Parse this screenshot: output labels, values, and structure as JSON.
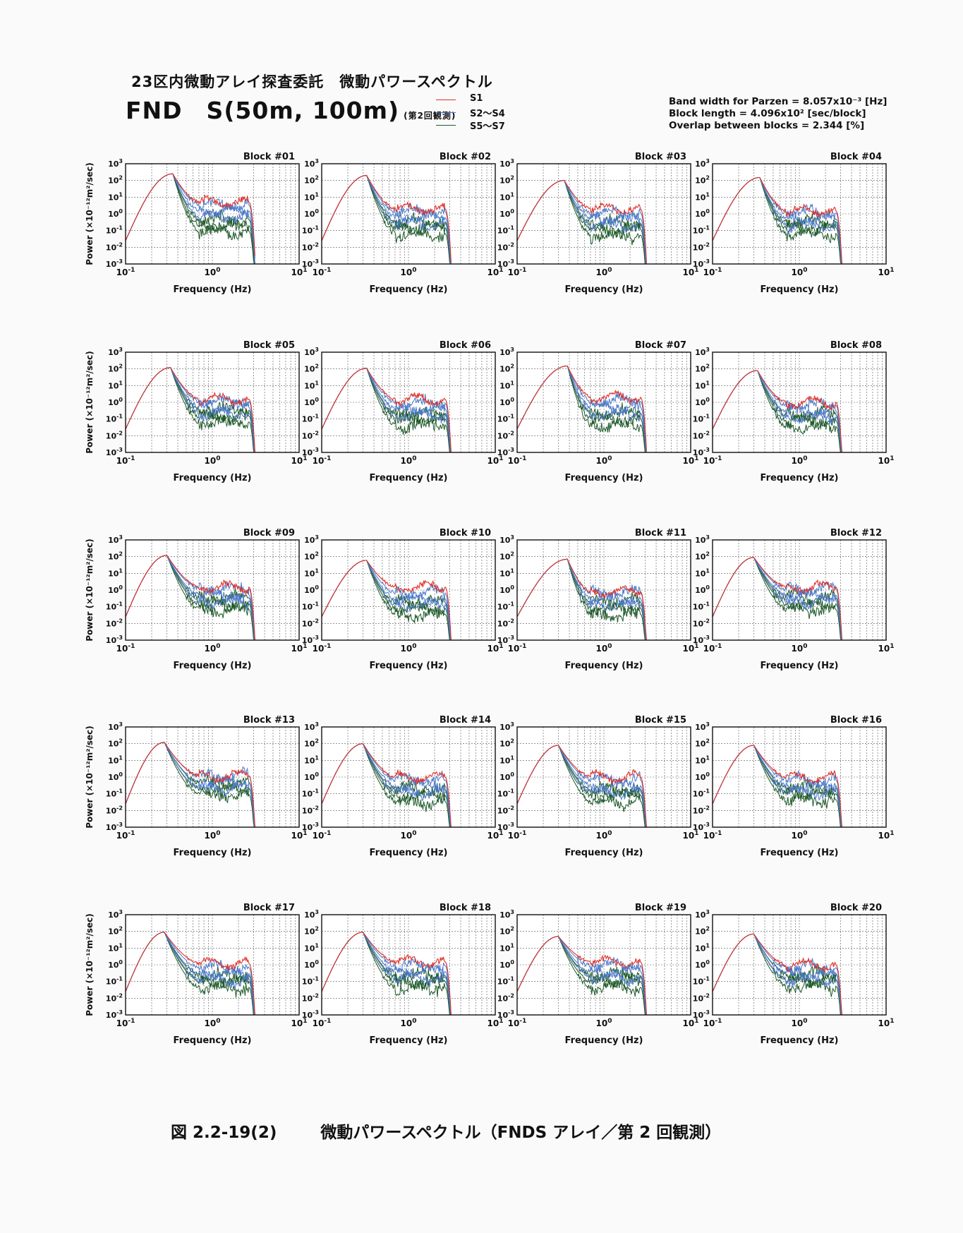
{
  "header": {
    "title": "23区内微動アレイ探査委託　微動パワースペクトル",
    "site": "FND　S(50m, 100m)",
    "site_note": "(第2回観測)"
  },
  "legend": [
    {
      "label": "S1",
      "color": "#e0302a"
    },
    {
      "label": "S2～S4",
      "color": "#4a78c8"
    },
    {
      "label": "S5～S7",
      "color": "#1e5a2a"
    }
  ],
  "params": {
    "bandwidth": "Band width for Parzen = 8.057x10⁻³ [Hz]",
    "block_length": "Block length = 4.096x10² [sec/block]",
    "overlap": "Overlap between blocks = 2.344 [%]"
  },
  "chart_data": {
    "type": "line",
    "layout": "grid 5 rows x 4 columns",
    "xlabel": "Frequency (Hz)",
    "ylabel": "Power (×10⁻¹²m²/sec)",
    "xscale": "log",
    "yscale": "log",
    "xlim": [
      0.1,
      10
    ],
    "ylim": [
      0.001,
      1000
    ],
    "x_tick_labels": [
      "10⁻¹",
      "10⁰",
      "10¹"
    ],
    "y_tick_labels": [
      "10³",
      "10²",
      "10¹",
      "10⁰",
      "10⁻¹",
      "10⁻²",
      "10⁻³"
    ],
    "grid": true,
    "series": [
      {
        "name": "S1",
        "color": "#e0302a"
      },
      {
        "name": "S2～S4",
        "color": "#4a78c8"
      },
      {
        "name": "S5～S7",
        "color": "#1e5a2a"
      }
    ],
    "panels": [
      {
        "title": "Block #01",
        "peak_hz": 0.35,
        "peak_power": 250,
        "S1_plateau": 5,
        "S2S4_plateau": 1.5,
        "S5S7_plateau": 0.2
      },
      {
        "title": "Block #02",
        "peak_hz": 0.33,
        "peak_power": 200,
        "S1_plateau": 2,
        "S2S4_plateau": 0.6,
        "S5S7_plateau": 0.15
      },
      {
        "title": "Block #03",
        "peak_hz": 0.35,
        "peak_power": 100,
        "S1_plateau": 2,
        "S2S4_plateau": 0.5,
        "S5S7_plateau": 0.12
      },
      {
        "title": "Block #04",
        "peak_hz": 0.35,
        "peak_power": 150,
        "S1_plateau": 1.5,
        "S2S4_plateau": 0.5,
        "S5S7_plateau": 0.15
      },
      {
        "title": "Block #05",
        "peak_hz": 0.33,
        "peak_power": 120,
        "S1_plateau": 1.5,
        "S2S4_plateau": 0.5,
        "S5S7_plateau": 0.15
      },
      {
        "title": "Block #06",
        "peak_hz": 0.33,
        "peak_power": 110,
        "S1_plateau": 1.5,
        "S2S4_plateau": 0.4,
        "S5S7_plateau": 0.1
      },
      {
        "title": "Block #07",
        "peak_hz": 0.38,
        "peak_power": 150,
        "S1_plateau": 2,
        "S2S4_plateau": 0.5,
        "S5S7_plateau": 0.1
      },
      {
        "title": "Block #08",
        "peak_hz": 0.33,
        "peak_power": 80,
        "S1_plateau": 1,
        "S2S4_plateau": 0.3,
        "S5S7_plateau": 0.08
      },
      {
        "title": "Block #09",
        "peak_hz": 0.3,
        "peak_power": 120,
        "S1_plateau": 1.5,
        "S2S4_plateau": 0.5,
        "S5S7_plateau": 0.15
      },
      {
        "title": "Block #10",
        "peak_hz": 0.33,
        "peak_power": 60,
        "S1_plateau": 1.5,
        "S2S4_plateau": 0.3,
        "S5S7_plateau": 0.08
      },
      {
        "title": "Block #11",
        "peak_hz": 0.38,
        "peak_power": 70,
        "S1_plateau": 0.8,
        "S2S4_plateau": 0.3,
        "S5S7_plateau": 0.08
      },
      {
        "title": "Block #12",
        "peak_hz": 0.3,
        "peak_power": 90,
        "S1_plateau": 1.5,
        "S2S4_plateau": 0.5,
        "S5S7_plateau": 0.15
      },
      {
        "title": "Block #13",
        "peak_hz": 0.28,
        "peak_power": 120,
        "S1_plateau": 1.2,
        "S2S4_plateau": 0.5,
        "S5S7_plateau": 0.2
      },
      {
        "title": "Block #14",
        "peak_hz": 0.3,
        "peak_power": 100,
        "S1_plateau": 1,
        "S2S4_plateau": 0.3,
        "S5S7_plateau": 0.08
      },
      {
        "title": "Block #15",
        "peak_hz": 0.3,
        "peak_power": 80,
        "S1_plateau": 1,
        "S2S4_plateau": 0.3,
        "S5S7_plateau": 0.08
      },
      {
        "title": "Block #16",
        "peak_hz": 0.3,
        "peak_power": 80,
        "S1_plateau": 1,
        "S2S4_plateau": 0.3,
        "S5S7_plateau": 0.1
      },
      {
        "title": "Block #17",
        "peak_hz": 0.28,
        "peak_power": 90,
        "S1_plateau": 1.2,
        "S2S4_plateau": 0.3,
        "S5S7_plateau": 0.1
      },
      {
        "title": "Block #18",
        "peak_hz": 0.3,
        "peak_power": 90,
        "S1_plateau": 1.5,
        "S2S4_plateau": 0.4,
        "S5S7_plateau": 0.1
      },
      {
        "title": "Block #19",
        "peak_hz": 0.3,
        "peak_power": 50,
        "S1_plateau": 1.5,
        "S2S4_plateau": 0.4,
        "S5S7_plateau": 0.1
      },
      {
        "title": "Block #20",
        "peak_hz": 0.3,
        "peak_power": 70,
        "S1_plateau": 1,
        "S2S4_plateau": 0.3,
        "S5S7_plateau": 0.12
      }
    ]
  },
  "caption": {
    "figure_number": "図 2.2-19(2)",
    "text": "微動パワースペクトル（FNDS アレイ／第 2 回観測）"
  }
}
